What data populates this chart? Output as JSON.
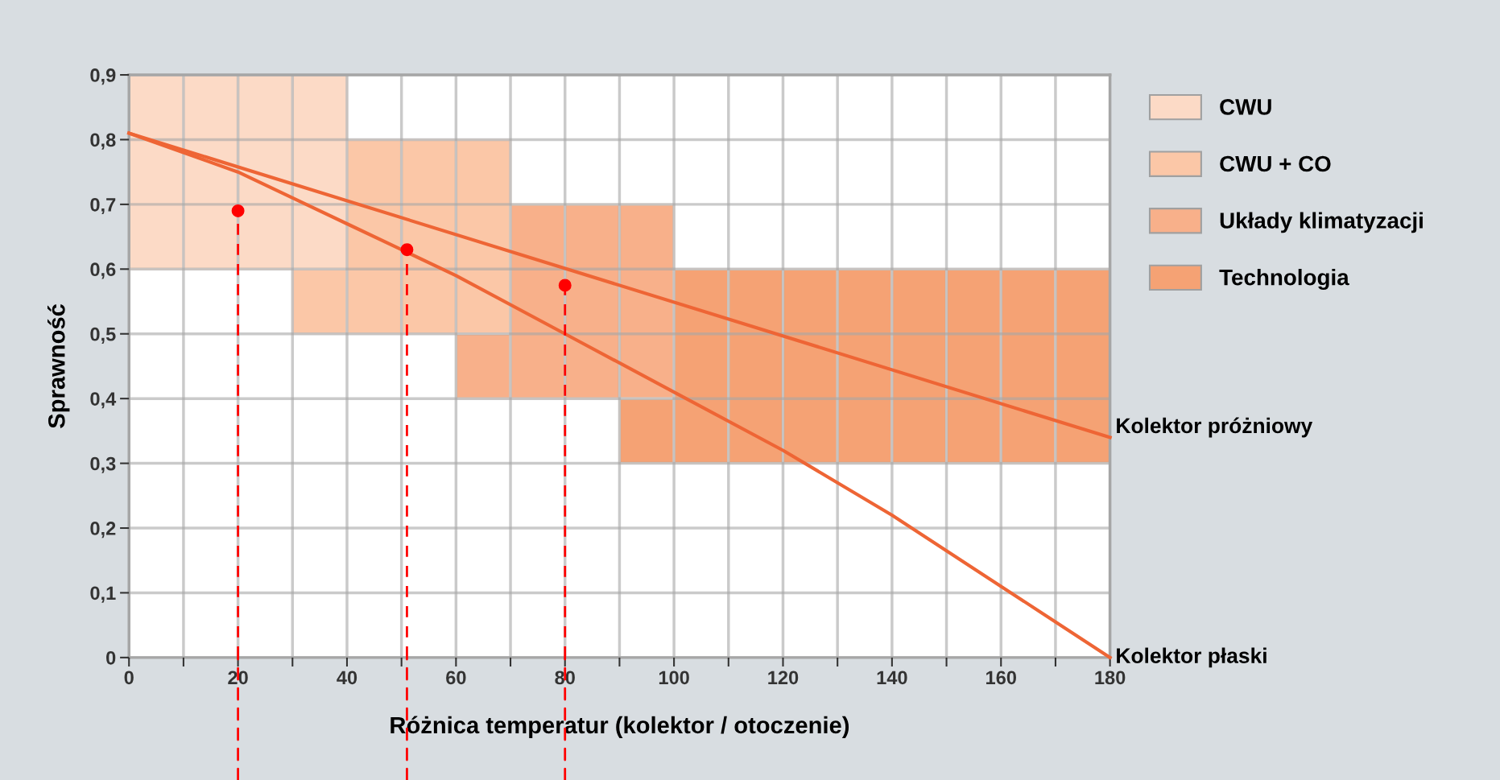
{
  "chart_data": {
    "type": "line",
    "xlabel": "Różnica temperatur (kolektor / otoczenie)",
    "ylabel": "Sprawność",
    "xlim": [
      0,
      180
    ],
    "ylim": [
      0,
      0.9
    ],
    "xticks": [
      0,
      {
        "value": 10,
        "label": null
      },
      20,
      {
        "value": 30,
        "label": null
      },
      40,
      {
        "value": 50,
        "label": null
      },
      60,
      {
        "value": 70,
        "label": null
      },
      80,
      {
        "value": 90,
        "label": null
      },
      100,
      {
        "value": 110,
        "label": null
      },
      120,
      {
        "value": 130,
        "label": null
      },
      140,
      {
        "value": 150,
        "label": null
      },
      160,
      {
        "value": 170,
        "label": null
      },
      180
    ],
    "yticks": [
      0,
      {
        "value": 0.1,
        "label": "0,1"
      },
      {
        "value": 0.2,
        "label": "0,2"
      },
      {
        "value": 0.3,
        "label": "0,3"
      },
      {
        "value": 0.4,
        "label": "0,4"
      },
      {
        "value": 0.5,
        "label": "0,5"
      },
      {
        "value": 0.6,
        "label": "0,6"
      },
      {
        "value": 0.7,
        "label": "0,7"
      },
      {
        "value": 0.8,
        "label": "0,8"
      },
      {
        "value": 0.9,
        "label": "0,9"
      }
    ],
    "grid": true,
    "legend": "right",
    "series": [
      {
        "type": "bar",
        "name": "CWU",
        "color": "#fcdac6",
        "x": [
          5,
          15,
          25,
          35
        ],
        "base": [
          0.6,
          0.6,
          0.6,
          0.6
        ],
        "values": [
          0.3,
          0.3,
          0.3,
          0.3
        ]
      },
      {
        "type": "bar",
        "name": "CWU + CO",
        "color": "#fbc7a7",
        "x": [
          35,
          45,
          55,
          65
        ],
        "base": [
          0.5,
          0.5,
          0.5,
          0.5
        ],
        "values": [
          0.1,
          0.3,
          0.3,
          0.3
        ]
      },
      {
        "type": "bar",
        "name": "Układy klimatyzacji",
        "color": "#f8b08a",
        "x": [
          65,
          75,
          85,
          95
        ],
        "base": [
          0.4,
          0.4,
          0.4,
          0.4
        ],
        "values": [
          0.1,
          0.3,
          0.3,
          0.3
        ]
      },
      {
        "type": "bar",
        "name": "Technologia",
        "color": "#f5a274",
        "x": [
          95,
          105,
          115,
          125,
          135,
          145,
          155,
          165,
          175
        ],
        "base": [
          0.3,
          0.3,
          0.3,
          0.3,
          0.3,
          0.3,
          0.3,
          0.3,
          0.3
        ],
        "values": [
          0.1,
          0.3,
          0.3,
          0.3,
          0.3,
          0.3,
          0.3,
          0.3,
          0.3
        ]
      },
      {
        "name": "Kolektor próżniowy",
        "color": "#ee6535",
        "x": [
          0,
          180
        ],
        "values": [
          0.81,
          0.34
        ]
      },
      {
        "name": "Kolektor płaski",
        "color": "#ee6535",
        "x": [
          0,
          20,
          40,
          60,
          80,
          100,
          120,
          140,
          160,
          180
        ],
        "values": [
          0.81,
          0.75,
          0.67,
          0.59,
          0.5,
          0.41,
          0.32,
          0.22,
          0.11,
          0.0
        ]
      },
      {
        "type": "lollipop",
        "color": "#ff0000",
        "line_style": "dashed",
        "x": [
          20,
          51,
          80
        ],
        "values": [
          0.69,
          0.63,
          0.575
        ]
      }
    ]
  }
}
